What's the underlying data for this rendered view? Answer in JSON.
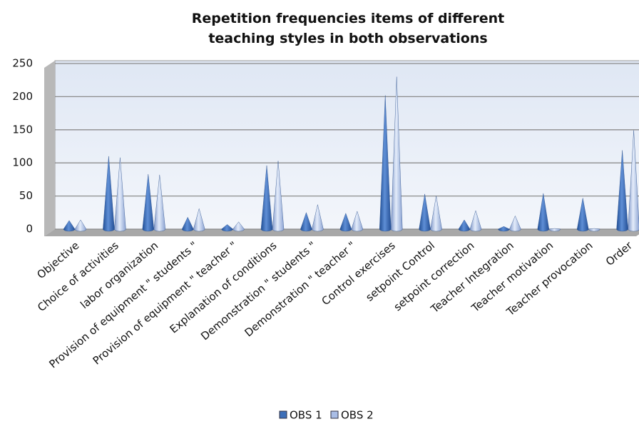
{
  "chart_data": {
    "type": "cone-bar",
    "title": "Repetition frequencies items of different teaching styles in both observations",
    "categories": [
      "Objective",
      "Choice of activities",
      "labor organization",
      "Provision of equipment \" students \"",
      "Provision of equipment \" teacher \"",
      "Explanation of conditions",
      "Demonstration \" students \"",
      "Demonstration \" teacher \"",
      "Control exercises",
      "setpoint Control",
      "setpoint correction",
      "Teacher Integration",
      "Teacher motivation",
      "Teacher provocation",
      "Order"
    ],
    "series": [
      {
        "name": "OBS 1",
        "color": "#3d6fb8",
        "values": [
          13,
          110,
          83,
          18,
          7,
          96,
          25,
          24,
          202,
          53,
          14,
          4,
          54,
          47,
          119
        ]
      },
      {
        "name": "OBS 2",
        "color": "#a9bde6",
        "values": [
          14,
          108,
          82,
          31,
          11,
          103,
          37,
          27,
          230,
          50,
          28,
          20,
          1,
          1,
          149
        ]
      }
    ],
    "ylim": [
      0,
      250
    ],
    "yticks": [
      0,
      50,
      100,
      150,
      200,
      250
    ],
    "grid": true,
    "legend": "bottom"
  }
}
